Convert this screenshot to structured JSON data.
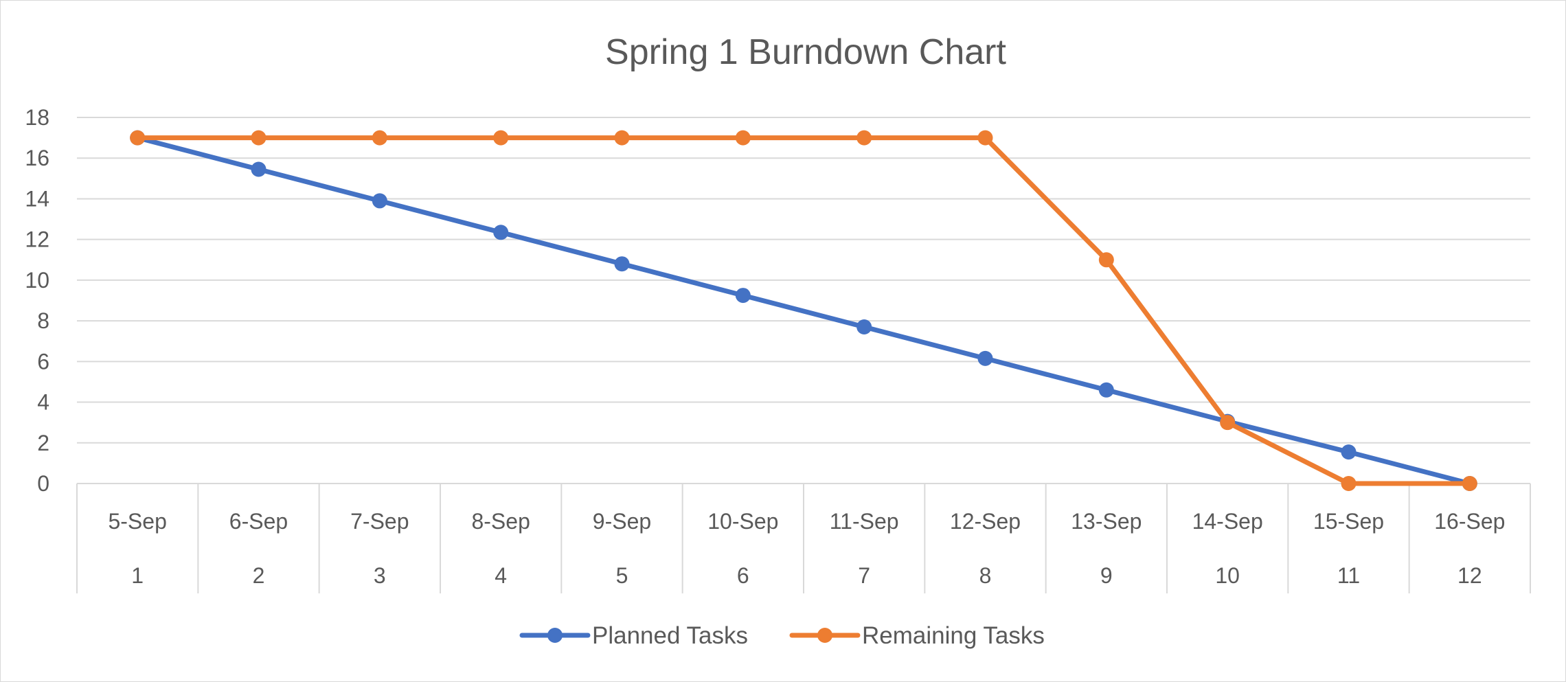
{
  "chart_data": {
    "type": "line",
    "title": "Spring 1 Burndown Chart",
    "xlabel": "",
    "ylabel": "",
    "categories": [
      {
        "date": "5-Sep",
        "day": "1"
      },
      {
        "date": "6-Sep",
        "day": "2"
      },
      {
        "date": "7-Sep",
        "day": "3"
      },
      {
        "date": "8-Sep",
        "day": "4"
      },
      {
        "date": "9-Sep",
        "day": "5"
      },
      {
        "date": "10-Sep",
        "day": "6"
      },
      {
        "date": "11-Sep",
        "day": "7"
      },
      {
        "date": "12-Sep",
        "day": "8"
      },
      {
        "date": "13-Sep",
        "day": "9"
      },
      {
        "date": "14-Sep",
        "day": "10"
      },
      {
        "date": "15-Sep",
        "day": "11"
      },
      {
        "date": "16-Sep",
        "day": "12"
      }
    ],
    "ylim": [
      0,
      18
    ],
    "yticks": [
      0,
      2,
      4,
      6,
      8,
      10,
      12,
      14,
      16,
      18
    ],
    "grid": true,
    "legend_position": "bottom",
    "series": [
      {
        "name": "Planned Tasks",
        "color": "#4472C4",
        "values": [
          17,
          15.45,
          13.9,
          12.35,
          10.8,
          9.25,
          7.7,
          6.15,
          4.6,
          3.05,
          1.55,
          0
        ]
      },
      {
        "name": "Remaining Tasks",
        "color": "#ED7D31",
        "values": [
          17,
          17,
          17,
          17,
          17,
          17,
          17,
          17,
          11,
          3,
          0,
          0
        ]
      }
    ]
  }
}
